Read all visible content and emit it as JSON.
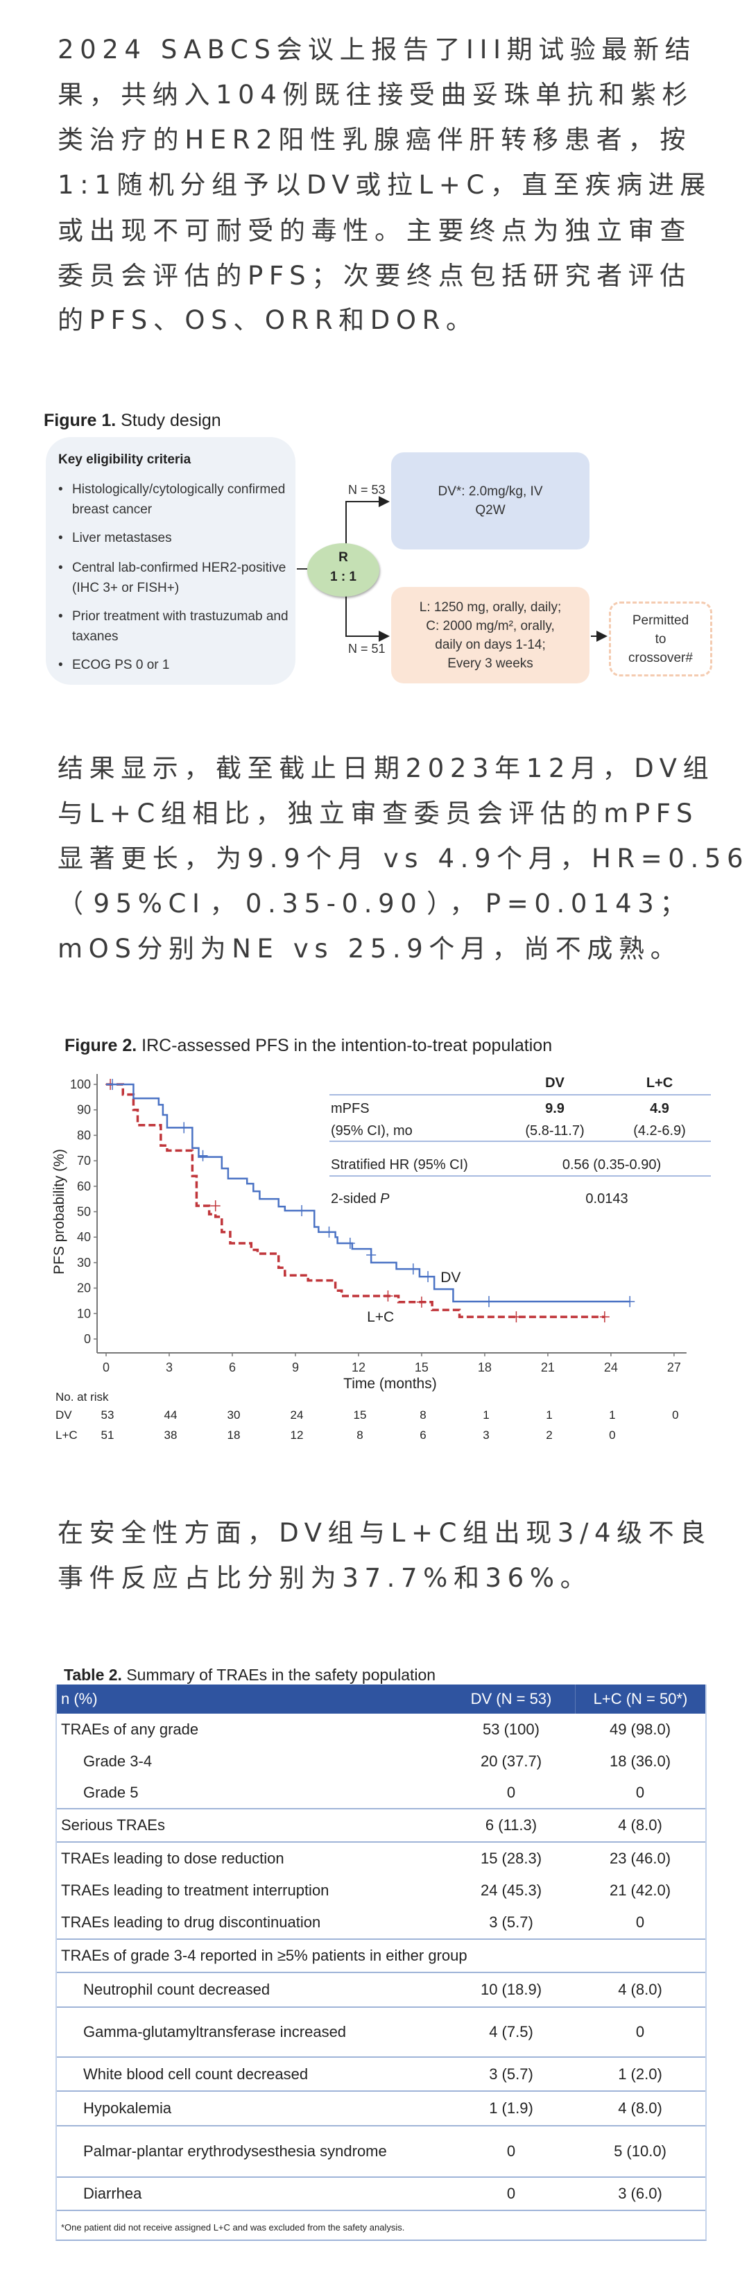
{
  "intro_paragraph": {
    "lines": [
      "2024 SABCS会议上报告了III期试验最新结",
      "果，共纳入104例既往接受曲妥珠单抗和紫杉",
      "类治疗的HER2阳性乳腺癌伴肝转移患者，按",
      "1:1随机分组予以DV或拉L+C，直至疾病进展",
      "或出现不可耐受的毒性。主要终点为独立审查",
      "委员会评估的PFS；次要终点包括研究者评估",
      "的PFS、OS、ORR和DOR。"
    ]
  },
  "figure1": {
    "title_bold": "Figure 1.",
    "title_rest": " Study design",
    "eligibility": {
      "header": "Key eligibility criteria",
      "bullet_char": "•",
      "items": [
        "Histologically/cytologically confirmed breast cancer",
        "Liver metastases",
        "Central lab-confirmed HER2-positive (IHC 3+ or FISH+)",
        "Prior treatment with trastuzumab and taxanes",
        "ECOG PS 0 or 1"
      ]
    },
    "randomization": {
      "line1": "R",
      "line2": "1 : 1"
    },
    "arm_dv": {
      "n_label": "N = 53",
      "lines": [
        "DV*: 2.0mg/kg, IV",
        "Q2W"
      ]
    },
    "arm_lc": {
      "n_label": "N = 51",
      "lines": [
        "L: 1250 mg, orally, daily;",
        "C: 2000 mg/m², orally,",
        "daily on days 1-14;",
        "Every 3 weeks"
      ]
    },
    "crossover": {
      "lines": [
        "Permitted",
        "to",
        "crossover#"
      ]
    },
    "colors": {
      "eligibility_bg": "#eef2f7",
      "dv_box": "#d9e2f3",
      "lc_box": "#fbe5d6",
      "randomization": "#c5e0b4",
      "crossover_border": "#f4cbb0"
    }
  },
  "results_paragraph": {
    "lines": [
      "结果显示，截至截止日期2023年12月，DV组",
      "与L+C组相比，独立审查委员会评估的mPFS",
      "显著更长，为9.9个月 vs 4.9个月，HR=0.56",
      "（95%CI，0.35-0.90），P=0.0143；",
      "mOS分别为NE vs 25.9个月，尚不成熟。"
    ]
  },
  "chart_data": {
    "type": "line",
    "subtype": "kaplan-meier step",
    "title_bold": "Figure 2.",
    "title": " IRC-assessed PFS in the intention-to-treat population",
    "xlabel": "Time (months)",
    "ylabel": "PFS probability (%)",
    "xlim": [
      0,
      27
    ],
    "ylim": [
      0,
      100
    ],
    "xticks": [
      0,
      3,
      6,
      9,
      12,
      15,
      18,
      21,
      24,
      27
    ],
    "yticks": [
      0,
      10,
      20,
      30,
      40,
      50,
      60,
      70,
      80,
      90,
      100
    ],
    "grid": false,
    "series": [
      {
        "name": "DV",
        "color": "#4a72c4",
        "style": "solid",
        "steps": [
          [
            0,
            100
          ],
          [
            1.3,
            94.5
          ],
          [
            2.5,
            92
          ],
          [
            2.7,
            88
          ],
          [
            2.9,
            83
          ],
          [
            4.1,
            75
          ],
          [
            4.4,
            71.5
          ],
          [
            5.5,
            67
          ],
          [
            5.8,
            63
          ],
          [
            6.7,
            61
          ],
          [
            7.0,
            58
          ],
          [
            7.3,
            55
          ],
          [
            8.2,
            52
          ],
          [
            8.5,
            50.4
          ],
          [
            9.9,
            44
          ],
          [
            10.1,
            42
          ],
          [
            10.9,
            40
          ],
          [
            11.0,
            37.6
          ],
          [
            11.7,
            35.4
          ],
          [
            12.6,
            30
          ],
          [
            13.8,
            27.5
          ],
          [
            14.9,
            24.5
          ],
          [
            15.6,
            19.6
          ],
          [
            16.5,
            14.7
          ],
          [
            24.9,
            14.7
          ]
        ],
        "censored": [
          [
            0.3,
            100
          ],
          [
            3.7,
            83
          ],
          [
            4.6,
            72
          ],
          [
            9.3,
            50.4
          ],
          [
            10.6,
            42
          ],
          [
            11.6,
            37.6
          ],
          [
            12.6,
            33
          ],
          [
            14.6,
            27.5
          ],
          [
            15.3,
            24.5
          ],
          [
            18.2,
            14.7
          ],
          [
            24.9,
            14.7
          ]
        ],
        "end_label": "DV"
      },
      {
        "name": "L+C",
        "color": "#c0353a",
        "style": "dashed",
        "steps": [
          [
            0,
            100
          ],
          [
            0.8,
            96
          ],
          [
            1.3,
            90
          ],
          [
            1.5,
            84
          ],
          [
            2.6,
            76
          ],
          [
            2.9,
            74
          ],
          [
            4.1,
            64
          ],
          [
            4.3,
            52.3
          ],
          [
            4.9,
            49
          ],
          [
            5.2,
            48
          ],
          [
            5.5,
            42
          ],
          [
            5.9,
            37.6
          ],
          [
            6.9,
            35
          ],
          [
            7.2,
            33.5
          ],
          [
            8.2,
            28
          ],
          [
            8.5,
            25
          ],
          [
            9.6,
            23
          ],
          [
            10.9,
            19
          ],
          [
            11.2,
            16.9
          ],
          [
            13.9,
            14.5
          ],
          [
            15.5,
            11.4
          ],
          [
            16.8,
            8.7
          ],
          [
            23.7,
            8.7
          ]
        ],
        "censored": [
          [
            0.2,
            100
          ],
          [
            5.2,
            52.3
          ],
          [
            13.4,
            16.9
          ],
          [
            15.0,
            14.5
          ],
          [
            19.5,
            8.7
          ],
          [
            23.7,
            8.7
          ]
        ],
        "end_label": "L+C"
      }
    ],
    "stats_table": {
      "col_headers": [
        "DV",
        "L+C"
      ],
      "rows": [
        {
          "label": "mPFS",
          "label2": "(95% CI), mo",
          "dv": "9.9",
          "dv2": "(5.8-11.7)",
          "lc": "4.9",
          "lc2": "(4.2-6.9)"
        },
        {
          "label": "Stratified HR (95% CI)",
          "value": "0.56 (0.35-0.90)"
        },
        {
          "label": "2-sided",
          "label_italic": "P",
          "value": "0.0143"
        }
      ]
    },
    "at_risk": {
      "title": "No. at risk",
      "rows": [
        {
          "group": "DV",
          "values": [
            53,
            44,
            30,
            24,
            15,
            8,
            1,
            1,
            1,
            0
          ]
        },
        {
          "group": "L+C",
          "values": [
            51,
            38,
            18,
            12,
            8,
            6,
            3,
            2,
            0,
            null
          ]
        }
      ]
    }
  },
  "safety_paragraph": {
    "lines": [
      "在安全性方面，DV组与L+C组出现3/4级不良",
      "事件反应占比分别为37.7%和36%。"
    ]
  },
  "table2": {
    "title_bold": "Table 2.",
    "title_rest": " Summary of TRAEs in the safety population",
    "header": [
      "n (%)",
      "DV (N = 53)",
      "L+C (N = 50*)"
    ],
    "header_color": "#2f54a0",
    "rows": [
      {
        "label": "TRAEs of any grade",
        "dv": "53 (100)",
        "lc": "49 (98.0)",
        "indent": false,
        "sep": false
      },
      {
        "label": "Grade 3-4",
        "dv": "20 (37.7)",
        "lc": "18 (36.0)",
        "indent": true,
        "sep": false
      },
      {
        "label": "Grade 5",
        "dv": "0",
        "lc": "0",
        "indent": true,
        "sep": false
      },
      {
        "label": "Serious TRAEs",
        "dv": "6 (11.3)",
        "lc": "4 (8.0)",
        "indent": false,
        "sep": true
      },
      {
        "label": "TRAEs leading to dose reduction",
        "dv": "15 (28.3)",
        "lc": "23 (46.0)",
        "indent": false,
        "sep": true
      },
      {
        "label": "TRAEs leading to treatment interruption",
        "dv": "24 (45.3)",
        "lc": "21 (42.0)",
        "indent": false,
        "sep": false
      },
      {
        "label": "TRAEs leading to drug discontinuation",
        "dv": "3 (5.7)",
        "lc": "0",
        "indent": false,
        "sep": false
      },
      {
        "label": "TRAEs of grade 3-4 reported in ≥5% patients in either group",
        "dv": "",
        "lc": "",
        "indent": false,
        "sep": true,
        "span": true
      },
      {
        "label": "Neutrophil count decreased",
        "dv": "10 (18.9)",
        "lc": "4 (8.0)",
        "indent": true,
        "sep": true
      },
      {
        "label": "Gamma-glutamyltransferase increased",
        "dv": "4 (7.5)",
        "lc": "0",
        "indent": true,
        "sep": true,
        "wrap": true
      },
      {
        "label": "White blood cell count decreased",
        "dv": "3 (5.7)",
        "lc": "1 (2.0)",
        "indent": true,
        "sep": true
      },
      {
        "label": "Hypokalemia",
        "dv": "1 (1.9)",
        "lc": "4 (8.0)",
        "indent": true,
        "sep": true
      },
      {
        "label": "Palmar-plantar erythrodysesthesia syndrome",
        "dv": "0",
        "lc": "5 (10.0)",
        "indent": true,
        "sep": true,
        "wrap": true
      },
      {
        "label": "Diarrhea",
        "dv": "0",
        "lc": "3 (6.0)",
        "indent": true,
        "sep": true
      }
    ],
    "footnote": "*One patient did not receive assigned L+C and was excluded from the safety analysis."
  }
}
